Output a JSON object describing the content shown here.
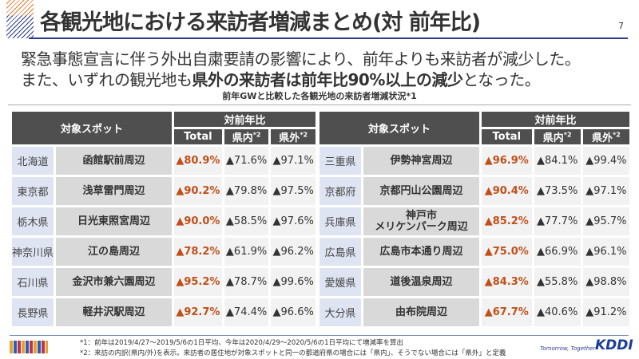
{
  "header": {
    "title": "各観光地における来訪者増減まとめ(対 前年比)",
    "page": "7"
  },
  "lead": {
    "line1": "緊急事態宣言に伴う外出自粛要請の影響により、前年よりも来訪者が減少した。",
    "line2_pre": "また、いずれの観光地も",
    "line2_bold": "県外の来訪者は前年比90%以上の減少",
    "line2_post": "となった。"
  },
  "caption": "前年GWと比較した各観光地の来訪者増減状況*1",
  "table_headers": {
    "spot": "対象スポット",
    "yoy": "対前年比",
    "total": "Total",
    "naiken": "県内",
    "gaiken": "県外",
    "sup": "*2"
  },
  "left_rows": [
    {
      "pref": "北海道",
      "spot": "函館駅前周辺",
      "total": "▲80.9%",
      "in": "▲71.6%",
      "out": "▲97.1%"
    },
    {
      "pref": "東京都",
      "spot": "浅草雷門周辺",
      "total": "▲90.2%",
      "in": "▲79.8%",
      "out": "▲97.5%"
    },
    {
      "pref": "栃木県",
      "spot": "日光東照宮周辺",
      "total": "▲90.0%",
      "in": "▲58.5%",
      "out": "▲97.6%"
    },
    {
      "pref": "神奈川県",
      "spot": "江の島周辺",
      "total": "▲78.2%",
      "in": "▲61.9%",
      "out": "▲96.2%"
    },
    {
      "pref": "石川県",
      "spot": "金沢市兼六園周辺",
      "total": "▲95.2%",
      "in": "▲78.7%",
      "out": "▲99.6%"
    },
    {
      "pref": "長野県",
      "spot": "軽井沢駅周辺",
      "total": "▲92.7%",
      "in": "▲74.4%",
      "out": "▲96.6%"
    }
  ],
  "right_rows": [
    {
      "pref": "三重県",
      "spot": "伊勢神宮周辺",
      "total": "▲96.9%",
      "in": "▲84.1%",
      "out": "▲99.4%"
    },
    {
      "pref": "京都府",
      "spot": "京都円山公園周辺",
      "total": "▲90.4%",
      "in": "▲73.5%",
      "out": "▲97.1%"
    },
    {
      "pref": "兵庫県",
      "spot": "神戸市\nメリケンパーク周辺",
      "total": "▲85.2%",
      "in": "▲77.7%",
      "out": "▲95.7%"
    },
    {
      "pref": "広島県",
      "spot": "広島市本通り周辺",
      "total": "▲75.0%",
      "in": "▲66.9%",
      "out": "▲96.1%"
    },
    {
      "pref": "愛媛県",
      "spot": "道後温泉周辺",
      "total": "▲84.3%",
      "in": "▲55.8%",
      "out": "▲98.8%"
    },
    {
      "pref": "大分県",
      "spot": "由布院周辺",
      "total": "▲67.7%",
      "in": "▲40.6%",
      "out": "▲91.2%"
    }
  ],
  "footnotes": [
    "*1：前年は2019/4/27～2019/5/6の1日平均、今年は2020/4/29～2020/5/6の1日平均にて増減率を算出",
    "*2：来訪の内訳(県内/外)を表示。来訪者の居住地が対象スポットと同一の都道府県の場合には「県内」、そうでない場合には「県外」と定義"
  ],
  "brand": {
    "tagline": "Tomorrow, Together",
    "logo": "KDDI"
  },
  "colors": {
    "accent_red": "#c0501a",
    "header_gray": "#4f4f4f",
    "brand_blue": "#2a3b8f"
  }
}
